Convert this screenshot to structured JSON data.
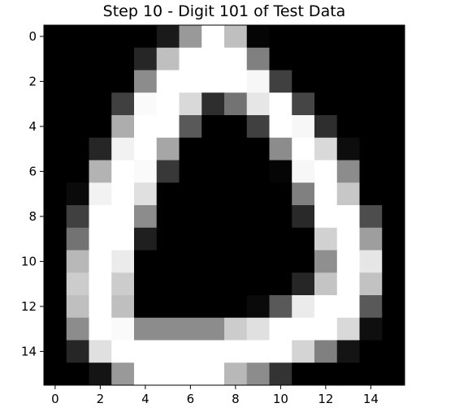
{
  "chart_data": {
    "type": "heatmap",
    "title": "Step 10 - Digit 101 of Test Data",
    "xlabel": "",
    "ylabel": "",
    "colormap": "gray",
    "value_range": [
      0,
      1
    ],
    "xlim": [
      -0.5,
      15.5
    ],
    "ylim": [
      15.5,
      -0.5
    ],
    "x_ticks": [
      "0",
      "2",
      "4",
      "6",
      "8",
      "10",
      "12",
      "14"
    ],
    "y_ticks": [
      "0",
      "2",
      "4",
      "6",
      "8",
      "10",
      "12",
      "14"
    ],
    "x_tick_values": [
      0,
      2,
      4,
      6,
      8,
      10,
      12,
      14
    ],
    "y_tick_values": [
      0,
      2,
      4,
      6,
      8,
      10,
      12,
      14
    ],
    "grid": false,
    "values": [
      [
        0,
        0,
        0,
        0,
        0,
        0.1,
        0.6,
        1,
        0.75,
        0.02,
        0,
        0,
        0,
        0,
        0,
        0
      ],
      [
        0,
        0,
        0,
        0,
        0.15,
        0.75,
        1,
        1,
        1,
        0.5,
        0,
        0,
        0,
        0,
        0,
        0
      ],
      [
        0,
        0,
        0,
        0,
        0.55,
        1,
        1,
        1,
        1,
        0.97,
        0.25,
        0,
        0,
        0,
        0,
        0
      ],
      [
        0,
        0,
        0,
        0.25,
        0.98,
        1,
        0.85,
        0.18,
        0.45,
        0.9,
        1,
        0.27,
        0,
        0,
        0,
        0
      ],
      [
        0,
        0,
        0,
        0.68,
        1,
        1,
        0.35,
        0,
        0,
        0.25,
        1,
        0.97,
        0.18,
        0,
        0,
        0
      ],
      [
        0,
        0,
        0.15,
        0.95,
        1,
        0.65,
        0,
        0,
        0,
        0,
        0.55,
        1,
        0.85,
        0.05,
        0,
        0
      ],
      [
        0,
        0,
        0.7,
        1,
        0.98,
        0.22,
        0,
        0,
        0,
        0,
        0.02,
        0.97,
        1,
        0.55,
        0,
        0
      ],
      [
        0,
        0.04,
        0.95,
        1,
        0.88,
        0,
        0,
        0,
        0,
        0,
        0,
        0.5,
        1,
        0.78,
        0,
        0
      ],
      [
        0,
        0.25,
        1,
        1,
        0.55,
        0,
        0,
        0,
        0,
        0,
        0,
        0.16,
        1,
        1,
        0.3,
        0
      ],
      [
        0,
        0.45,
        1,
        1,
        0.12,
        0,
        0,
        0,
        0,
        0,
        0,
        0,
        0.82,
        1,
        0.62,
        0
      ],
      [
        0,
        0.72,
        1,
        0.92,
        0,
        0,
        0,
        0,
        0,
        0,
        0,
        0,
        0.56,
        1,
        0.9,
        0
      ],
      [
        0,
        0.8,
        1,
        0.8,
        0,
        0,
        0,
        0,
        0,
        0,
        0,
        0.15,
        0.77,
        1,
        0.76,
        0
      ],
      [
        0,
        0.75,
        1,
        0.75,
        0,
        0,
        0,
        0,
        0,
        0.04,
        0.35,
        0.92,
        1,
        1,
        0.35,
        0
      ],
      [
        0,
        0.55,
        1,
        0.98,
        0.55,
        0.55,
        0.55,
        0.55,
        0.8,
        0.88,
        1,
        1,
        1,
        0.85,
        0.06,
        0
      ],
      [
        0,
        0.15,
        0.88,
        1,
        1,
        1,
        1,
        1,
        1,
        1,
        1,
        0.83,
        0.5,
        0.08,
        0,
        0
      ],
      [
        0,
        0,
        0.08,
        0.6,
        1,
        1,
        1,
        1,
        0.72,
        0.55,
        0.2,
        0,
        0,
        0,
        0,
        0
      ]
    ]
  }
}
